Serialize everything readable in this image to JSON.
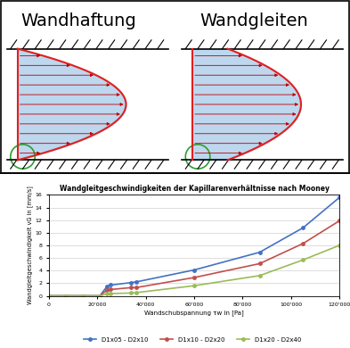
{
  "diagram": {
    "panels": [
      {
        "title": "Wandhaftung",
        "slip": false
      },
      {
        "title": "Wandgleiten",
        "slip": true
      }
    ]
  },
  "chart_data": {
    "type": "line",
    "title": "Wandgleitgeschwindigkeiten der Kapillarenverhältnisse nach Mooney",
    "x_label": "Wandschubspannung τw in [Pa]",
    "y_label": "Wandgleitgeschwindigkeit vG in [mm/s]",
    "x": [
      0,
      7000,
      14000,
      21000,
      24000,
      25500,
      34000,
      36000,
      60000,
      87000,
      105000,
      120000
    ],
    "series": [
      {
        "name": "D1x05 - D2x10",
        "color": "#4472c4",
        "marker": "circle",
        "values": [
          0,
          0,
          0,
          0,
          1.5,
          1.7,
          2.1,
          2.2,
          4.1,
          6.9,
          10.8,
          15.6
        ]
      },
      {
        "name": "D1x10 - D2x20",
        "color": "#c0504d",
        "marker": "circle",
        "values": [
          0,
          0,
          0,
          0,
          0.9,
          1.0,
          1.3,
          1.3,
          2.9,
          5.1,
          8.3,
          11.9
        ]
      },
      {
        "name": "D1x20 - D2x40",
        "color": "#9bbb59",
        "marker": "circle",
        "values": [
          0,
          0,
          0,
          0,
          0.3,
          0.35,
          0.45,
          0.5,
          1.6,
          3.2,
          5.7,
          8.0
        ]
      }
    ],
    "xlim": [
      0,
      120000
    ],
    "xticks": [
      0,
      {
        "value": 20000,
        "label": "20'000"
      },
      {
        "value": 40000,
        "label": "40'000"
      },
      {
        "value": 60000,
        "label": "60'000"
      },
      {
        "value": 80000,
        "label": "80'000"
      },
      {
        "value": 100000,
        "label": "100'000"
      },
      {
        "value": 120000,
        "label": "120'000"
      }
    ],
    "ylim": [
      0,
      16
    ],
    "yticks": [
      0,
      2,
      4,
      6,
      8,
      10,
      12,
      14,
      16
    ],
    "grid": true,
    "legend": "lower center"
  }
}
